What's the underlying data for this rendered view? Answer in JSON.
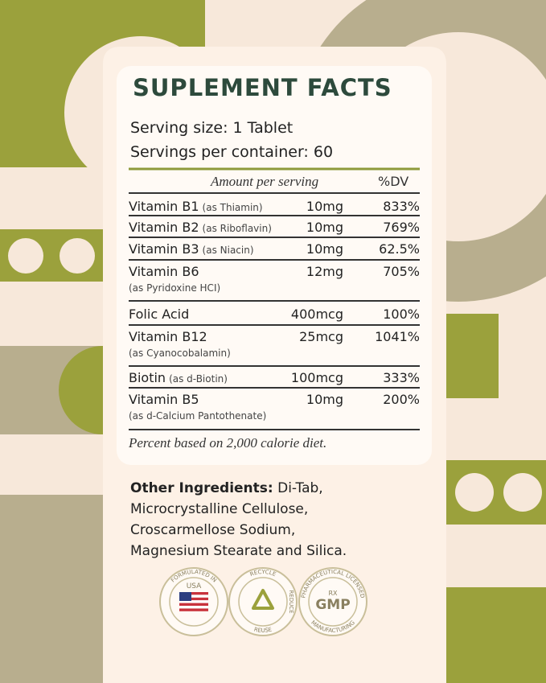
{
  "title": "SUPLEMENT FACTS",
  "serving_size": "Serving size: 1 Tablet",
  "servings_per_container": "Servings per container: 60",
  "table": {
    "header": [
      "Amount per serving",
      "%DV"
    ],
    "rows": [
      {
        "name": "Vitamin B1",
        "note": "(as Thiamin)",
        "amount": "10mg",
        "dv": "833%"
      },
      {
        "name": "Vitamin B2",
        "note": "(as Riboflavin)",
        "amount": "10mg",
        "dv": "769%"
      },
      {
        "name": "Vitamin B3",
        "note": "(as Niacin)",
        "amount": "10mg",
        "dv": "62.5%"
      },
      {
        "name": "Vitamin B6",
        "note": "(as Pyridoxine HCI)",
        "amount": "12mg",
        "dv": "705%"
      },
      {
        "name": "Folic Acid",
        "note": null,
        "amount": "400mcg",
        "dv": "100%"
      },
      {
        "name": "Vitamin B12",
        "note": "(as Cyanocobalamin)",
        "amount": "25mcg",
        "dv": "1041%"
      },
      {
        "name": "Biotin",
        "note": "(as d-Biotin)",
        "amount": "100mcg",
        "dv": "333%"
      },
      {
        "name": "Vitamin B5",
        "note": "(as d-Calcium Pantothenate)",
        "amount": "10mg",
        "dv": "200%"
      }
    ]
  },
  "footnote": "Percent based on 2,000 calorie diet.",
  "other_ingredients": {
    "label": "Other Ingredients:",
    "lines": [
      " Di-Tab,",
      "Microcrystalline Cellulose,",
      "Croscarmellose Sodium,",
      "Magnesium Stearate and Silica."
    ]
  },
  "badges": [
    {
      "top": "FORMULATED IN",
      "center": "USA"
    },
    {
      "top": "RECYCLE",
      "right": "REDUCE",
      "bottom": "REUSE"
    },
    {
      "top": "PHARMACEUTICAL LICENSED",
      "center_small": "RX",
      "center": "GMP",
      "bottom": "MANUFACTURING"
    }
  ]
}
